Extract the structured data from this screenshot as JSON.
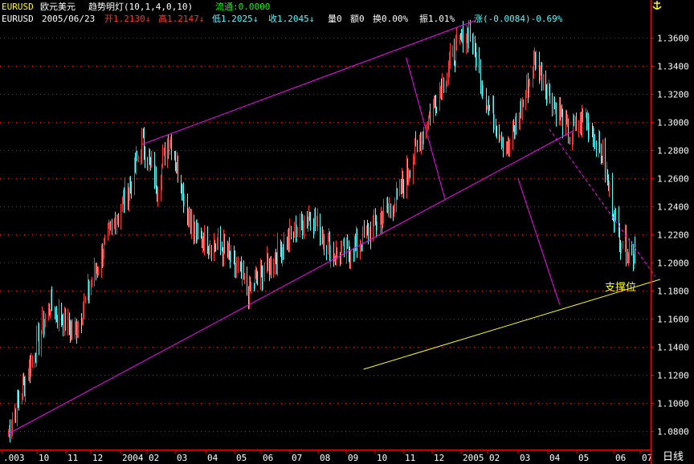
{
  "header": {
    "line1": {
      "symbol": "EURUSD",
      "name": "欧元美元",
      "indicator": "趋势明灯(10,1,4,0,10)",
      "float_label": "流通:0.0000"
    },
    "line2": {
      "symbol": "EURUSD",
      "date": "2005/06/23",
      "open": "开1.2130↓",
      "high": "高1.2147↓",
      "low": "低1.2025↓",
      "close": "收1.2045↓",
      "volume": "量0",
      "amount": "额0",
      "turnover": "换0.00%",
      "amplitude": "振1.01%",
      "change": "涨(-0.0084)-0.69%"
    },
    "anchor_icon": "anchor-icon"
  },
  "annotation": {
    "support_label": "支撑位"
  },
  "period_label": "日线",
  "colors": {
    "up": "#ff3232",
    "down": "#54fcfc",
    "channel": "#ff00ff",
    "support": "#ffff00",
    "grid": "#ff0000",
    "axis": "#ff0000"
  },
  "chart_data": {
    "type": "candlestick",
    "ylim": [
      1.07,
      1.375
    ],
    "y_ticks": [
      "1.0800",
      "1.1000",
      "1.1200",
      "1.1400",
      "1.1600",
      "1.1800",
      "1.2000",
      "1.2200",
      "1.2400",
      "1.2600",
      "1.2800",
      "1.3000",
      "1.3200",
      "1.3400",
      "1.3600"
    ],
    "x_labels": [
      ".003",
      "10",
      "11",
      "12",
      "2004",
      "02",
      "03",
      "04",
      "05",
      "06",
      "07",
      "08",
      "09",
      "10",
      "11",
      "12",
      "2005",
      "02",
      "03",
      "04",
      "05",
      "06",
      "07"
    ],
    "anchors": [
      [
        "2003-09-01",
        1.08
      ],
      [
        "2003-10-15",
        1.17
      ],
      [
        "2003-11-10",
        1.15
      ],
      [
        "2003-12-05",
        1.2
      ],
      [
        "2004-01-10",
        1.26
      ],
      [
        "2004-01-20",
        1.285
      ],
      [
        "2004-02-05",
        1.255
      ],
      [
        "2004-02-18",
        1.29
      ],
      [
        "2004-03-15",
        1.22
      ],
      [
        "2004-04-15",
        1.21
      ],
      [
        "2004-05-12",
        1.18
      ],
      [
        "2004-06-15",
        1.21
      ],
      [
        "2004-07-15",
        1.235
      ],
      [
        "2004-08-10",
        1.205
      ],
      [
        "2004-09-01",
        1.21
      ],
      [
        "2004-10-15",
        1.245
      ],
      [
        "2004-11-15",
        1.3
      ],
      [
        "2004-12-15",
        1.35
      ],
      [
        "2004-12-30",
        1.365
      ],
      [
        "2005-01-20",
        1.31
      ],
      [
        "2005-02-10",
        1.28
      ],
      [
        "2005-03-10",
        1.345
      ],
      [
        "2005-03-25",
        1.32
      ],
      [
        "2005-04-15",
        1.29
      ],
      [
        "2005-05-01",
        1.305
      ],
      [
        "2005-05-20",
        1.275
      ],
      [
        "2005-06-05",
        1.22
      ],
      [
        "2005-06-23",
        1.2045
      ]
    ],
    "last_bar": {
      "date": "2005/06/23",
      "open": 1.213,
      "high": 1.2147,
      "low": 1.2025,
      "close": 1.2045
    },
    "lines": [
      {
        "name": "upper-channel",
        "from": [
          "2004-01-20",
          1.284
        ],
        "to": [
          "2005-01-05",
          1.372
        ]
      },
      {
        "name": "lower-channel",
        "from": [
          "2003-09-01",
          1.078
        ],
        "to": [
          "2005-04-20",
          1.294
        ]
      },
      {
        "name": "support-line",
        "from": [
          "2004-09-10",
          1.124
        ],
        "to": [
          "2005-07-20",
          1.188
        ]
      },
      {
        "name": "downtrend-dashed",
        "from": [
          "2005-03-25",
          1.295
        ],
        "to": [
          "2005-07-15",
          1.19
        ]
      },
      {
        "name": "projection-1",
        "from": [
          "2004-10-25",
          1.346
        ],
        "to": [
          "2004-12-05",
          1.245
        ]
      },
      {
        "name": "projection-2",
        "from": [
          "2005-02-20",
          1.26
        ],
        "to": [
          "2005-04-05",
          1.17
        ]
      }
    ]
  }
}
